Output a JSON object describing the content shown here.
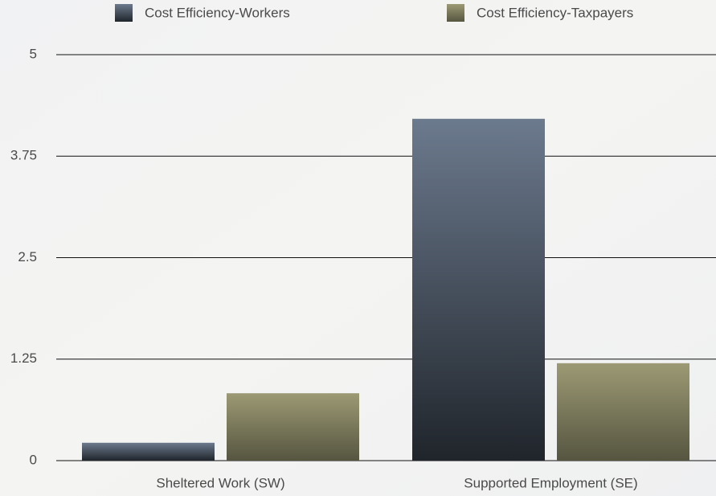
{
  "chart_data": {
    "type": "bar",
    "categories": [
      "Sheltered Work (SW)",
      "Supported Employment (SE)"
    ],
    "series": [
      {
        "name": "Cost Efficiency-Workers",
        "color": "#6c7a8e",
        "values": [
          0.22,
          4.21
        ]
      },
      {
        "name": "Cost Efficiency-Taxpayers",
        "color": "#9c9a74",
        "values": [
          0.83,
          1.2
        ]
      }
    ],
    "ylim": [
      0,
      5
    ],
    "yticks": [
      0,
      1.25,
      2.5,
      3.75,
      5
    ],
    "grid": true,
    "legend": "top"
  }
}
